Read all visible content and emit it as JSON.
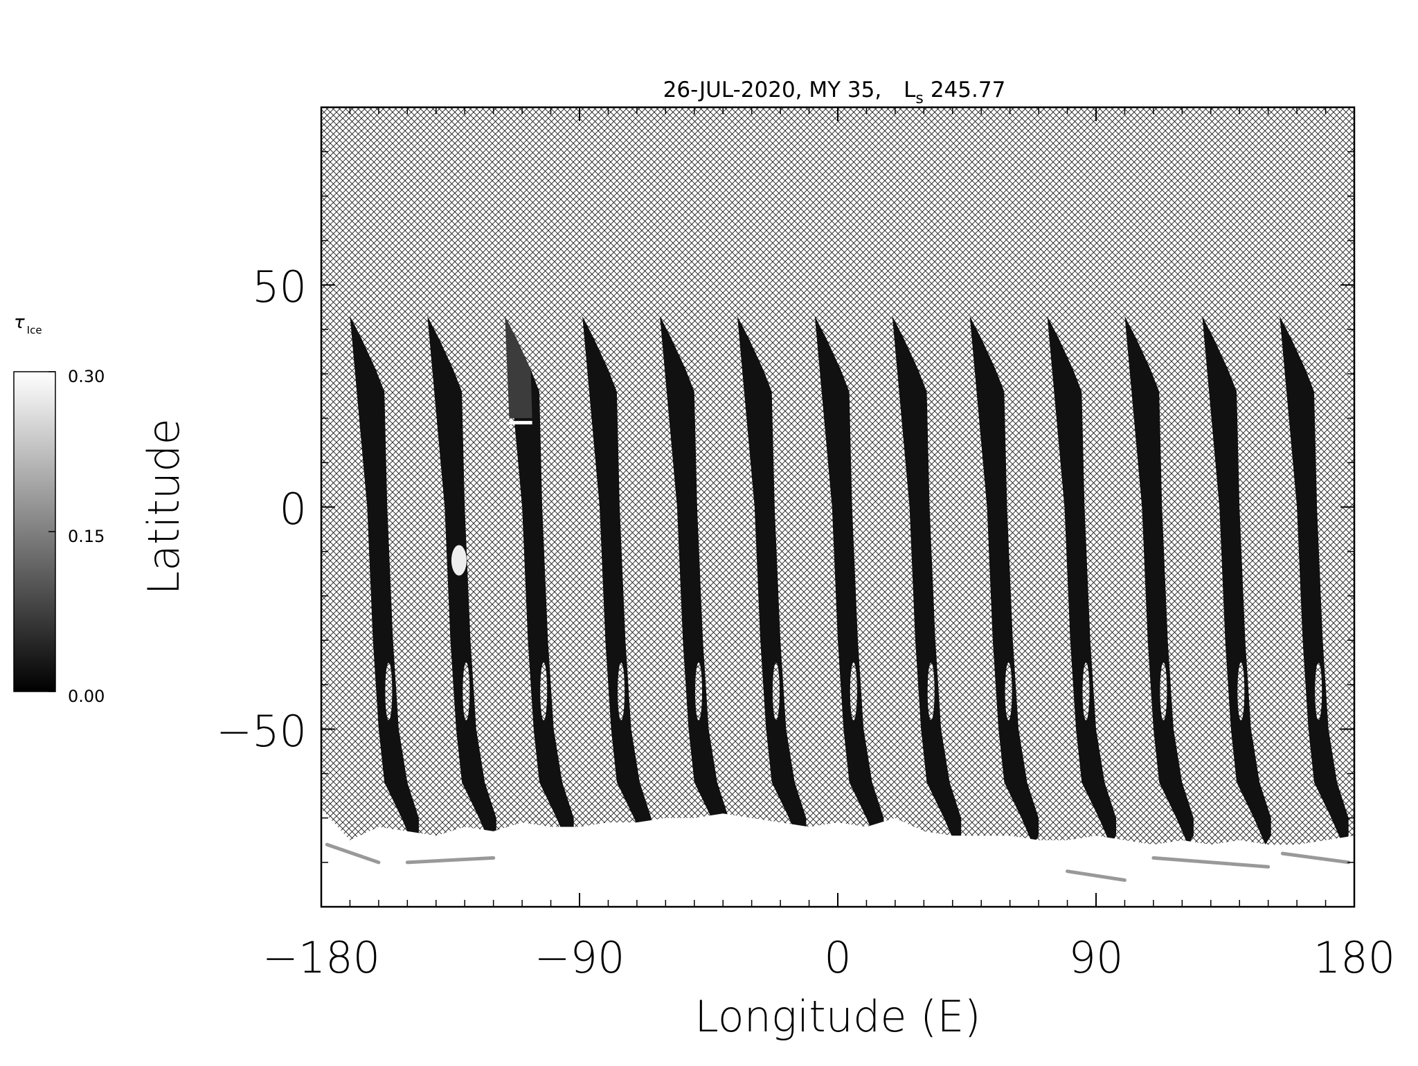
{
  "chart_data": {
    "type": "heatmap",
    "title": {
      "date": "26-JUL-2020, MY 35,",
      "ls_main": "L",
      "ls_sub": "s",
      "ls_value": "245.77"
    },
    "xlabel": "Longitude (E)",
    "ylabel": "Latitude",
    "xlim": [
      -180,
      180
    ],
    "ylim": [
      -90,
      90
    ],
    "x_ticks": [
      -180,
      -90,
      0,
      90,
      180
    ],
    "y_ticks": [
      -50,
      0,
      50
    ],
    "x_tick_labels": [
      "−180",
      "−90",
      "0",
      "90",
      "180"
    ],
    "y_tick_labels": [
      "−50",
      "0",
      "50"
    ],
    "colorbar": {
      "symbol": "τ",
      "subscript": "Ice",
      "range": [
        0.0,
        0.3
      ],
      "tick_labels": [
        "0.30",
        "0.15",
        "0.00"
      ],
      "colormap": "grayscale"
    },
    "no_data_pattern": "crosshatch",
    "swaths": {
      "count": 13,
      "start_longitudes": [
        -170,
        -143,
        -116,
        -89,
        -62,
        -35,
        -8,
        19,
        46,
        73,
        100,
        127,
        154
      ],
      "top_latitude": 43,
      "typical_tau_ice": 0.02
    },
    "south_polar_cap": {
      "latitude_edge": -75,
      "tau_ice": 0.3
    }
  }
}
